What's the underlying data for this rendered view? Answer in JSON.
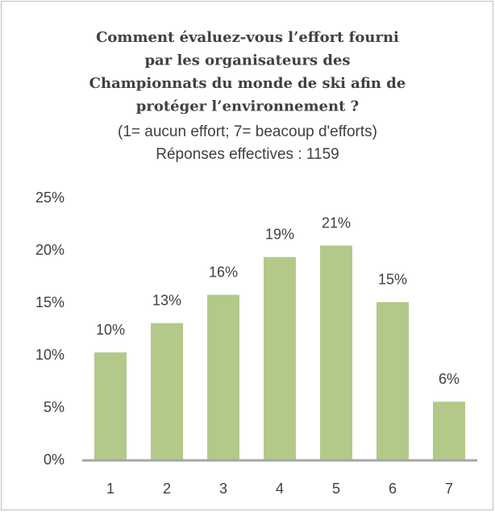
{
  "chart_data": {
    "type": "bar",
    "title_lines": [
      "Comment évaluez-vous l’effort fourni",
      "par les organisateurs des",
      "Championnats du monde de ski afin de",
      "protéger l’environnement ?"
    ],
    "subtitle_lines": [
      "(1= aucun effort; 7= beacoup d'efforts)",
      "Réponses effectives : 1159"
    ],
    "categories": [
      "1",
      "2",
      "3",
      "4",
      "5",
      "6",
      "7"
    ],
    "values": [
      10.3,
      13.1,
      15.8,
      19.4,
      20.5,
      15.1,
      5.6
    ],
    "value_labels": [
      "10%",
      "13%",
      "16%",
      "19%",
      "21%",
      "15%",
      "6%"
    ],
    "color": "#b3c98a",
    "ylim": [
      0,
      25
    ],
    "yticks": [
      {
        "value": 0,
        "label": "0%"
      },
      {
        "value": 5,
        "label": "5%"
      },
      {
        "value": 10,
        "label": "10%"
      },
      {
        "value": 15,
        "label": "15%"
      },
      {
        "value": 20,
        "label": "20%"
      },
      {
        "value": 25,
        "label": "25%"
      }
    ],
    "grid": false
  }
}
